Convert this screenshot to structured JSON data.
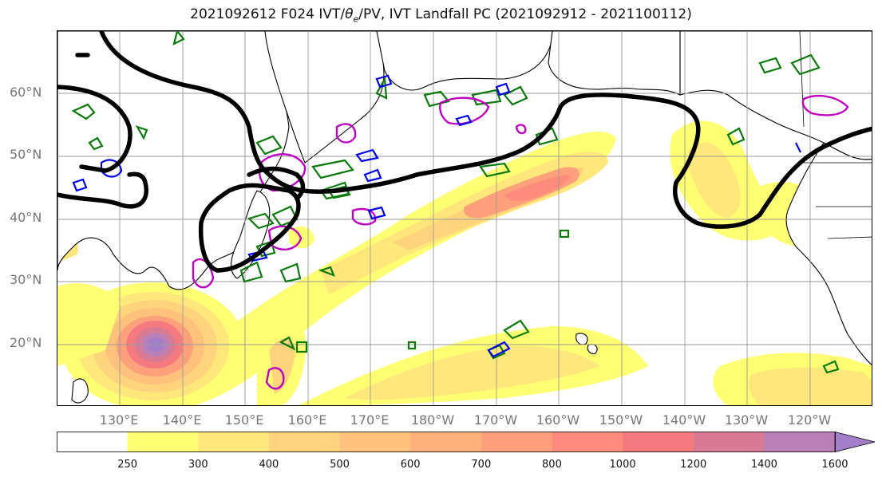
{
  "title": {
    "part1": "2021092612 F024 IVT/",
    "theta": "θ",
    "sub_e": "e",
    "part2": "/PV, IVT Landfall PC (2021092912 - 2021100112)"
  },
  "axes": {
    "lat_labels": [
      "60°N",
      "50°N",
      "40°N",
      "30°N",
      "20°N"
    ],
    "lon_labels": [
      "130°E",
      "140°E",
      "150°E",
      "160°E",
      "170°E",
      "180°W",
      "170°W",
      "160°W",
      "150°W",
      "140°W",
      "130°W",
      "120°W"
    ]
  },
  "colorbar": {
    "ticks": [
      "250",
      "300",
      "400",
      "500",
      "600",
      "700",
      "800",
      "1000",
      "1200",
      "1400",
      "1600"
    ],
    "colors": [
      "#ffffff",
      "#ffff74",
      "#ffe77c",
      "#ffd47c",
      "#ffc27c",
      "#ffb17c",
      "#ffa07c",
      "#ff8b7c",
      "#f57a80",
      "#d97a95",
      "#b980b7",
      "#a47ec9"
    ]
  },
  "layer_colors": {
    "ivt_contour": "#e8a060",
    "theta_e": "#0a7a0a",
    "pv": "#c000c0",
    "pv_blue": "#0000e6",
    "landfall_pc": "#000000",
    "gridline": "#999999",
    "coastline": "#000000"
  }
}
